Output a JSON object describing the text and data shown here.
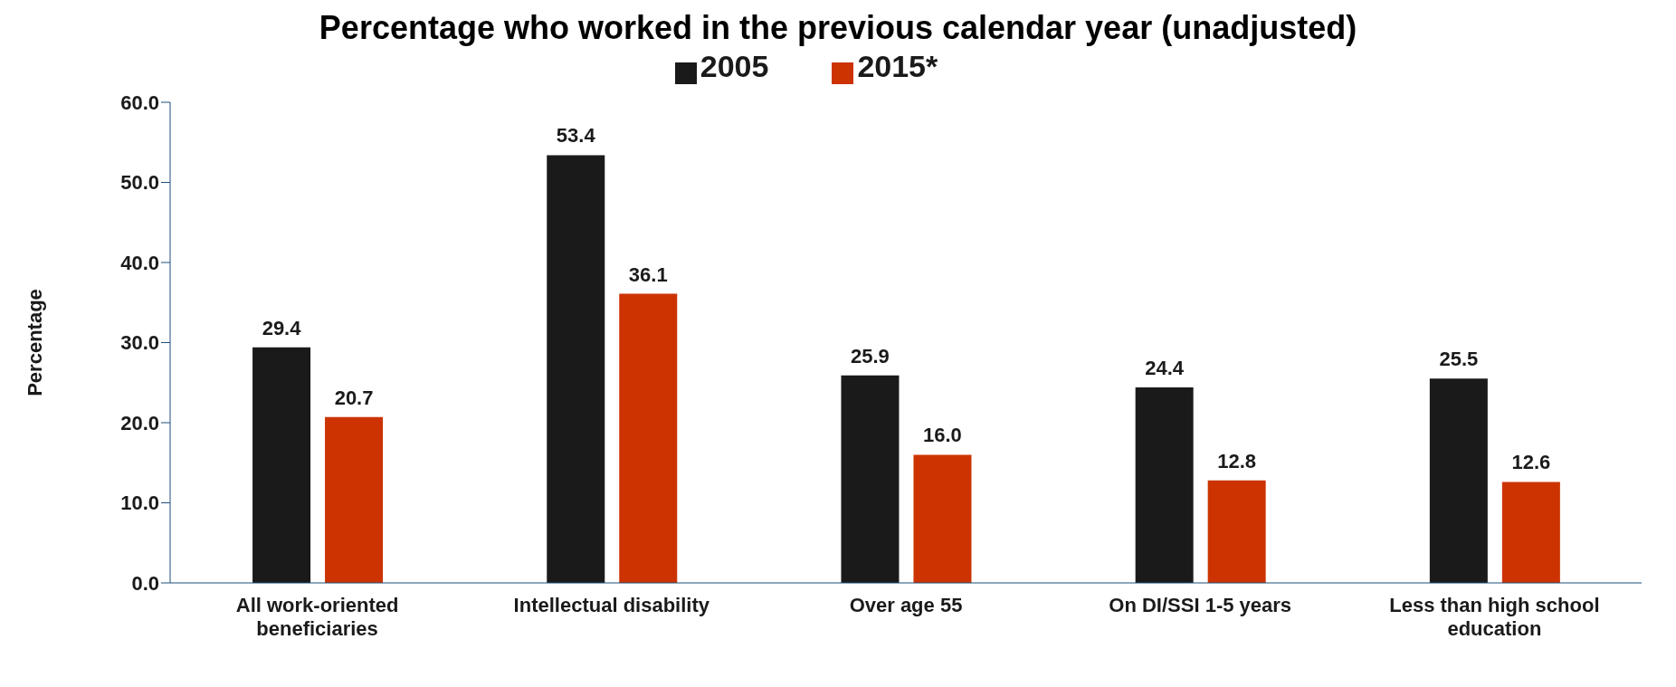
{
  "chart_data": {
    "type": "bar",
    "title": "Percentage who worked in the previous calendar year (unadjusted)",
    "ylabel": "Percentage",
    "categories": [
      "All work-oriented beneficiaries",
      "Intellectual disability",
      "Over age 55",
      "On DI/SSI 1-5 years",
      "Less than high school education"
    ],
    "series": [
      {
        "name": "2005",
        "color": "#1a1a1a",
        "values": [
          29.4,
          53.4,
          25.9,
          24.4,
          25.5
        ],
        "value_labels": [
          "29.4",
          "53.4",
          "25.9",
          "24.4",
          "25.5"
        ]
      },
      {
        "name": "2015*",
        "color": "#cc3300",
        "values": [
          20.7,
          36.1,
          16.0,
          12.8,
          12.6
        ],
        "value_labels": [
          "20.7",
          "36.1",
          "16.0",
          "12.8",
          "12.6"
        ]
      }
    ],
    "ylim": [
      0,
      60
    ],
    "yticks": [
      {
        "value": 0,
        "label": "0.0"
      },
      {
        "value": 10,
        "label": "10.0"
      },
      {
        "value": 20,
        "label": "20.0"
      },
      {
        "value": 30,
        "label": "30.0"
      },
      {
        "value": 40,
        "label": "40.0"
      },
      {
        "value": 50,
        "label": "50.0"
      },
      {
        "value": 60,
        "label": "60.0"
      }
    ],
    "grid": false,
    "legend": "top"
  }
}
